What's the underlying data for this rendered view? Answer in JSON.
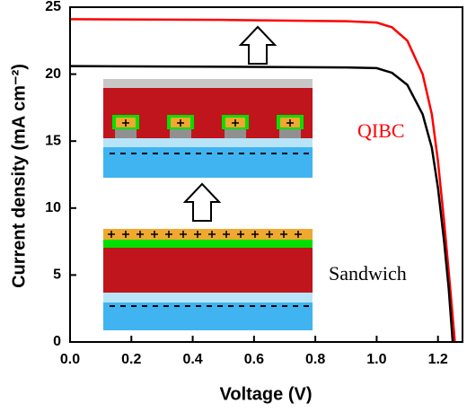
{
  "chart_data": {
    "type": "line",
    "x_label": "Voltage (V)",
    "y_label": "Current density (mA cm⁻²)",
    "xlim": [
      0,
      1.28
    ],
    "ylim": [
      0,
      25
    ],
    "xticks": [
      {
        "value": 0,
        "label": "0.0"
      },
      0.2,
      0.4,
      0.6,
      0.8,
      {
        "value": 1,
        "label": "1.0"
      },
      1.2
    ],
    "yticks": [
      0,
      5,
      10,
      15,
      20,
      25
    ],
    "series": [
      {
        "name": "QIBC",
        "color": "#ff0000",
        "x": [
          0,
          0.5,
          0.9,
          1.0,
          1.05,
          1.1,
          1.15,
          1.18,
          1.2,
          1.22,
          1.24,
          1.255
        ],
        "values": [
          24.1,
          24.05,
          23.95,
          23.85,
          23.5,
          22.5,
          20,
          17,
          13.5,
          9,
          4,
          0
        ]
      },
      {
        "name": "Sandwich",
        "color": "#000000",
        "x": [
          0,
          0.5,
          0.9,
          1.0,
          1.05,
          1.1,
          1.15,
          1.18,
          1.2,
          1.22,
          1.235,
          1.248
        ],
        "values": [
          20.6,
          20.55,
          20.5,
          20.45,
          20.1,
          19.2,
          17,
          14.5,
          11.5,
          7.5,
          4,
          0
        ]
      }
    ]
  }
}
